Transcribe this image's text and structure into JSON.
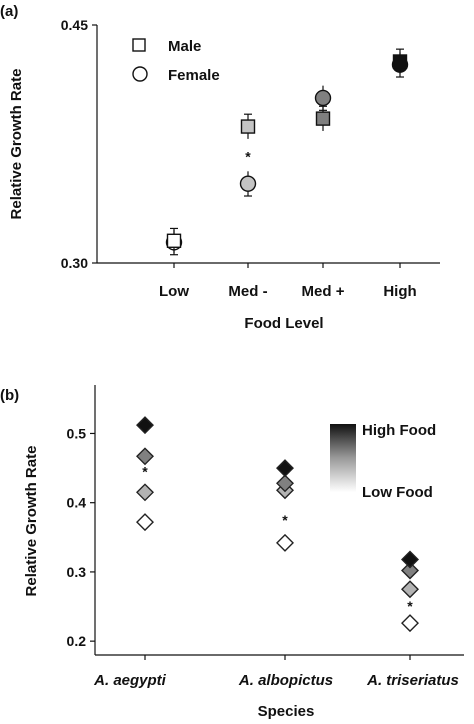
{
  "chart_data": [
    {
      "panel_label": "(a)",
      "type": "scatter",
      "xlabel": "Food Level",
      "ylabel": "Relative Growth Rate",
      "ylim": [
        0.3,
        0.45
      ],
      "yticks": [
        "0.30",
        "0.45"
      ],
      "categories": [
        "Low",
        "Med -",
        "Med +",
        "High"
      ],
      "series": [
        {
          "name": "Male",
          "marker": "square",
          "values": [
            0.314,
            0.386,
            0.391,
            0.427
          ],
          "errors": [
            0.004,
            0.004,
            0.004,
            0.004
          ]
        },
        {
          "name": "Female",
          "marker": "circle",
          "values": null,
          "values_list": [
            0.313,
            0.35,
            0.404,
            0.425
          ],
          "errors": [
            0.004,
            0.004,
            0.004,
            0.004
          ]
        }
      ],
      "colors": [
        "#ffffff",
        "#c4c4c4",
        "#808080",
        "#111111"
      ],
      "annotations": [
        {
          "category": "Med -",
          "text": "*",
          "y": 0.367
        }
      ],
      "legend_position": "top-left"
    },
    {
      "panel_label": "(b)",
      "type": "scatter",
      "xlabel": "Species",
      "ylabel": "Relative Growth Rate",
      "ylim": [
        0.18,
        0.57
      ],
      "yticks": [
        "0.2",
        "0.3",
        "0.4",
        "0.5"
      ],
      "categories": [
        "A. aegypti",
        "A. albopictus",
        "A. triseriatus"
      ],
      "food_levels": [
        "High",
        "Med +",
        "Med -",
        "Low"
      ],
      "values": [
        [
          0.512,
          0.467,
          0.415,
          0.372
        ],
        [
          0.45,
          0.428,
          0.418,
          0.342
        ],
        [
          0.318,
          0.302,
          0.275,
          0.226
        ]
      ],
      "colors": [
        "#111111",
        "#808080",
        "#b3b3b3",
        "#ffffff"
      ],
      "annotations": [
        {
          "category": "A. aegypti",
          "text": "*",
          "y": 0.445
        },
        {
          "category": "A. albopictus",
          "text": "*",
          "y": 0.375
        },
        {
          "category": "A. triseriatus",
          "text": "*",
          "y": 0.251
        }
      ],
      "legend": {
        "high": "High Food",
        "low": "Low Food"
      }
    }
  ]
}
